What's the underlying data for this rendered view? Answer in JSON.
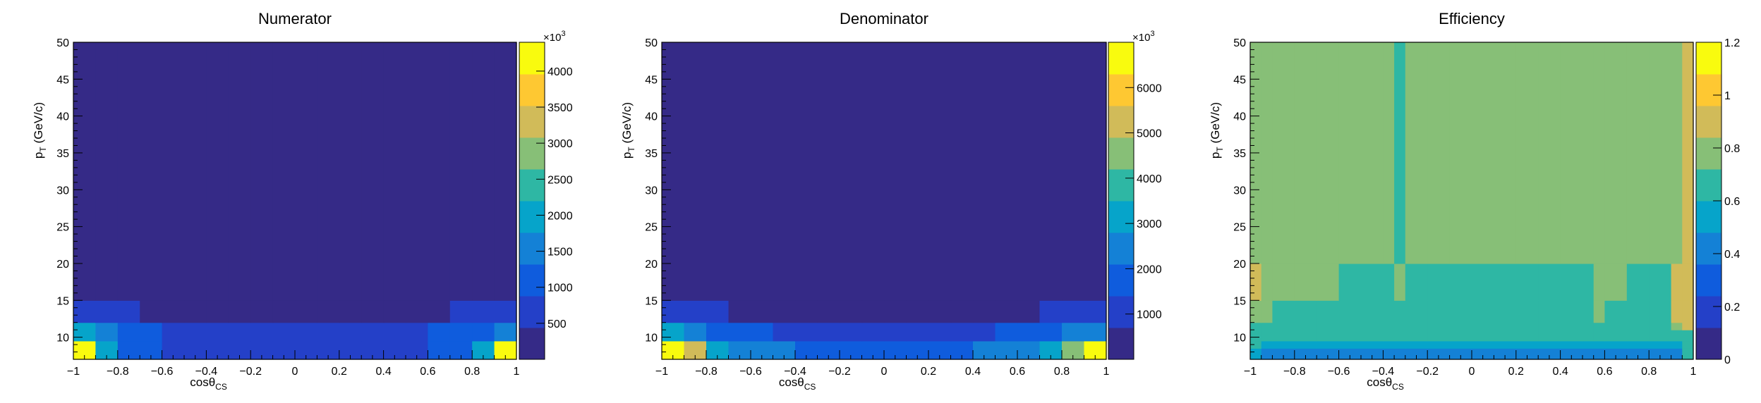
{
  "palette": [
    "#352a87",
    "#2440c8",
    "#0f5cdd",
    "#1481d6",
    "#06a4ca",
    "#2eb7a4",
    "#87bf77",
    "#d1bb59",
    "#fec832",
    "#f9fb0e"
  ],
  "chart_data": [
    {
      "id": "numerator",
      "type": "heatmap",
      "title": "Numerator",
      "xlabel": "cosθ",
      "xlabel_sub": "CS",
      "ylabel": "p",
      "ylabel_sub": "T",
      "ylabel_unit": " (GeV/c)",
      "x_edges": [
        -1,
        -0.9,
        -0.8,
        -0.7,
        -0.6,
        -0.5,
        -0.4,
        -0.3,
        -0.2,
        -0.1,
        0,
        0.1,
        0.2,
        0.3,
        0.4,
        0.5,
        0.6,
        0.7,
        0.8,
        0.9,
        1
      ],
      "y_edges": [
        7,
        9.5,
        12,
        15,
        50
      ],
      "xlim": [
        -1,
        1
      ],
      "ylim": [
        7,
        50
      ],
      "xticks": [
        -1,
        -0.8,
        -0.6,
        -0.4,
        -0.2,
        0,
        0.2,
        0.4,
        0.6,
        0.8,
        1
      ],
      "xtick_labels": [
        "−1",
        "−0.8",
        "−0.6",
        "−0.4",
        "−0.2",
        "0",
        "0.2",
        "0.4",
        "0.6",
        "0.8",
        "1"
      ],
      "yticks": [
        10,
        15,
        20,
        25,
        30,
        35,
        40,
        45,
        50
      ],
      "ytick_labels": [
        "10",
        "15",
        "20",
        "25",
        "30",
        "35",
        "40",
        "45",
        "50"
      ],
      "z_range": [
        0,
        4400
      ],
      "z_ticks": [
        500,
        1000,
        1500,
        2000,
        2500,
        3000,
        3500,
        4000
      ],
      "z_tick_labels": [
        "500",
        "1000",
        "1500",
        "2000",
        "2500",
        "3000",
        "3500",
        "4000"
      ],
      "z_multiplier": "×10",
      "z_multiplier_exp": "3",
      "values": [
        [
          4300,
          2100,
          1100,
          900,
          850,
          850,
          800,
          800,
          800,
          800,
          800,
          800,
          800,
          800,
          800,
          850,
          900,
          950,
          2000,
          4300
        ],
        [
          2000,
          1400,
          1000,
          900,
          800,
          800,
          800,
          800,
          800,
          800,
          800,
          800,
          800,
          800,
          800,
          850,
          900,
          1000,
          1300,
          1500
        ],
        [
          700,
          700,
          700,
          300,
          300,
          300,
          300,
          300,
          300,
          300,
          300,
          300,
          300,
          300,
          300,
          300,
          300,
          700,
          700,
          700
        ],
        [
          300,
          300,
          300,
          300,
          300,
          300,
          300,
          300,
          300,
          300,
          300,
          300,
          300,
          300,
          300,
          300,
          300,
          300,
          300,
          300
        ]
      ]
    },
    {
      "id": "denominator",
      "type": "heatmap",
      "title": "Denominator",
      "xlabel": "cosθ",
      "xlabel_sub": "CS",
      "ylabel": "p",
      "ylabel_sub": "T",
      "ylabel_unit": " (GeV/c)",
      "x_edges": [
        -1,
        -0.9,
        -0.8,
        -0.7,
        -0.6,
        -0.5,
        -0.4,
        -0.3,
        -0.2,
        -0.1,
        0,
        0.1,
        0.2,
        0.3,
        0.4,
        0.5,
        0.6,
        0.7,
        0.8,
        0.9,
        1
      ],
      "y_edges": [
        7,
        9.5,
        12,
        15,
        50
      ],
      "xlim": [
        -1,
        1
      ],
      "ylim": [
        7,
        50
      ],
      "xticks": [
        -1,
        -0.8,
        -0.6,
        -0.4,
        -0.2,
        0,
        0.2,
        0.4,
        0.6,
        0.8,
        1
      ],
      "xtick_labels": [
        "−1",
        "−0.8",
        "−0.6",
        "−0.4",
        "−0.2",
        "0",
        "0.2",
        "0.4",
        "0.6",
        "0.8",
        "1"
      ],
      "yticks": [
        10,
        15,
        20,
        25,
        30,
        35,
        40,
        45,
        50
      ],
      "ytick_labels": [
        "10",
        "15",
        "20",
        "25",
        "30",
        "35",
        "40",
        "45",
        "50"
      ],
      "z_range": [
        0,
        7000
      ],
      "z_ticks": [
        1000,
        2000,
        3000,
        4000,
        5000,
        6000
      ],
      "z_tick_labels": [
        "1000",
        "2000",
        "3000",
        "4000",
        "5000",
        "6000"
      ],
      "z_multiplier": "×10",
      "z_multiplier_exp": "3",
      "values": [
        [
          6900,
          5200,
          3400,
          2600,
          2300,
          2100,
          2000,
          1900,
          1900,
          1900,
          1900,
          1900,
          1900,
          2000,
          2100,
          2400,
          2700,
          3200,
          4600,
          6900
        ],
        [
          3200,
          2300,
          1700,
          1500,
          1400,
          1300,
          1300,
          1300,
          1300,
          1300,
          1300,
          1300,
          1300,
          1300,
          1300,
          1400,
          1500,
          1600,
          2100,
          2300
        ],
        [
          1000,
          1000,
          1000,
          500,
          500,
          500,
          500,
          500,
          500,
          500,
          500,
          500,
          500,
          500,
          500,
          500,
          500,
          1000,
          1000,
          1000
        ],
        [
          500,
          500,
          500,
          500,
          500,
          500,
          500,
          500,
          500,
          500,
          500,
          500,
          500,
          500,
          500,
          500,
          500,
          500,
          500,
          500
        ]
      ]
    },
    {
      "id": "efficiency",
      "type": "heatmap",
      "title": "Efficiency",
      "xlabel": "cosθ",
      "xlabel_sub": "CS",
      "ylabel": "p",
      "ylabel_sub": "T",
      "ylabel_unit": " (GeV/c)",
      "x_edges": [
        -1,
        -0.95,
        -0.9,
        -0.8,
        -0.7,
        -0.6,
        -0.4,
        -0.35,
        -0.3,
        -0.2,
        -0.1,
        0,
        0.1,
        0.2,
        0.3,
        0.4,
        0.5,
        0.55,
        0.6,
        0.7,
        0.8,
        0.9,
        0.95,
        1
      ],
      "y_edges": [
        7,
        8.5,
        9.5,
        11,
        12,
        15,
        20,
        50
      ],
      "xlim": [
        -1,
        1
      ],
      "ylim": [
        7,
        50
      ],
      "xticks": [
        -1,
        -0.8,
        -0.6,
        -0.4,
        -0.2,
        0,
        0.2,
        0.4,
        0.6,
        0.8,
        1
      ],
      "xtick_labels": [
        "−1",
        "−0.8",
        "−0.6",
        "−0.4",
        "−0.2",
        "0",
        "0.2",
        "0.4",
        "0.6",
        "0.8",
        "1"
      ],
      "yticks": [
        10,
        15,
        20,
        25,
        30,
        35,
        40,
        45,
        50
      ],
      "ytick_labels": [
        "10",
        "15",
        "20",
        "25",
        "30",
        "35",
        "40",
        "45",
        "50"
      ],
      "z_range": [
        0,
        1.2
      ],
      "z_ticks": [
        0,
        0.2,
        0.4,
        0.6,
        0.8,
        1,
        1.2
      ],
      "z_tick_labels": [
        "0",
        "0.2",
        "0.4",
        "0.6",
        "0.8",
        "1",
        "1.2"
      ],
      "z_multiplier": "",
      "z_multiplier_exp": "",
      "values": [
        [
          0.55,
          0.45,
          0.45,
          0.45,
          0.45,
          0.45,
          0.45,
          0.45,
          0.45,
          0.45,
          0.45,
          0.45,
          0.45,
          0.45,
          0.45,
          0.45,
          0.45,
          0.45,
          0.45,
          0.45,
          0.45,
          0.45,
          0.6
        ],
        [
          0.6,
          0.55,
          0.55,
          0.55,
          0.55,
          0.55,
          0.55,
          0.55,
          0.55,
          0.55,
          0.55,
          0.55,
          0.55,
          0.55,
          0.55,
          0.55,
          0.55,
          0.55,
          0.55,
          0.55,
          0.55,
          0.55,
          0.65
        ],
        [
          0.65,
          0.65,
          0.6,
          0.6,
          0.6,
          0.6,
          0.6,
          0.6,
          0.6,
          0.6,
          0.6,
          0.6,
          0.6,
          0.6,
          0.6,
          0.6,
          0.6,
          0.6,
          0.6,
          0.6,
          0.6,
          0.6,
          0.65
        ],
        [
          0.65,
          0.65,
          0.65,
          0.65,
          0.65,
          0.65,
          0.65,
          0.65,
          0.65,
          0.65,
          0.65,
          0.65,
          0.65,
          0.65,
          0.65,
          0.65,
          0.65,
          0.65,
          0.65,
          0.65,
          0.65,
          0.75,
          0.85
        ],
        [
          0.8,
          0.8,
          0.65,
          0.65,
          0.65,
          0.65,
          0.65,
          0.65,
          0.65,
          0.65,
          0.65,
          0.65,
          0.65,
          0.65,
          0.65,
          0.65,
          0.65,
          0.72,
          0.65,
          0.65,
          0.65,
          0.85,
          0.85
        ],
        [
          0.9,
          0.75,
          0.75,
          0.75,
          0.75,
          0.65,
          0.65,
          0.75,
          0.65,
          0.65,
          0.65,
          0.65,
          0.65,
          0.65,
          0.65,
          0.65,
          0.65,
          0.72,
          0.72,
          0.65,
          0.65,
          0.85,
          0.85
        ],
        [
          0.8,
          0.8,
          0.8,
          0.8,
          0.72,
          0.72,
          0.72,
          0.6,
          0.72,
          0.72,
          0.72,
          0.72,
          0.72,
          0.72,
          0.72,
          0.72,
          0.8,
          0.72,
          0.72,
          0.72,
          0.8,
          0.8,
          0.85
        ]
      ]
    }
  ]
}
